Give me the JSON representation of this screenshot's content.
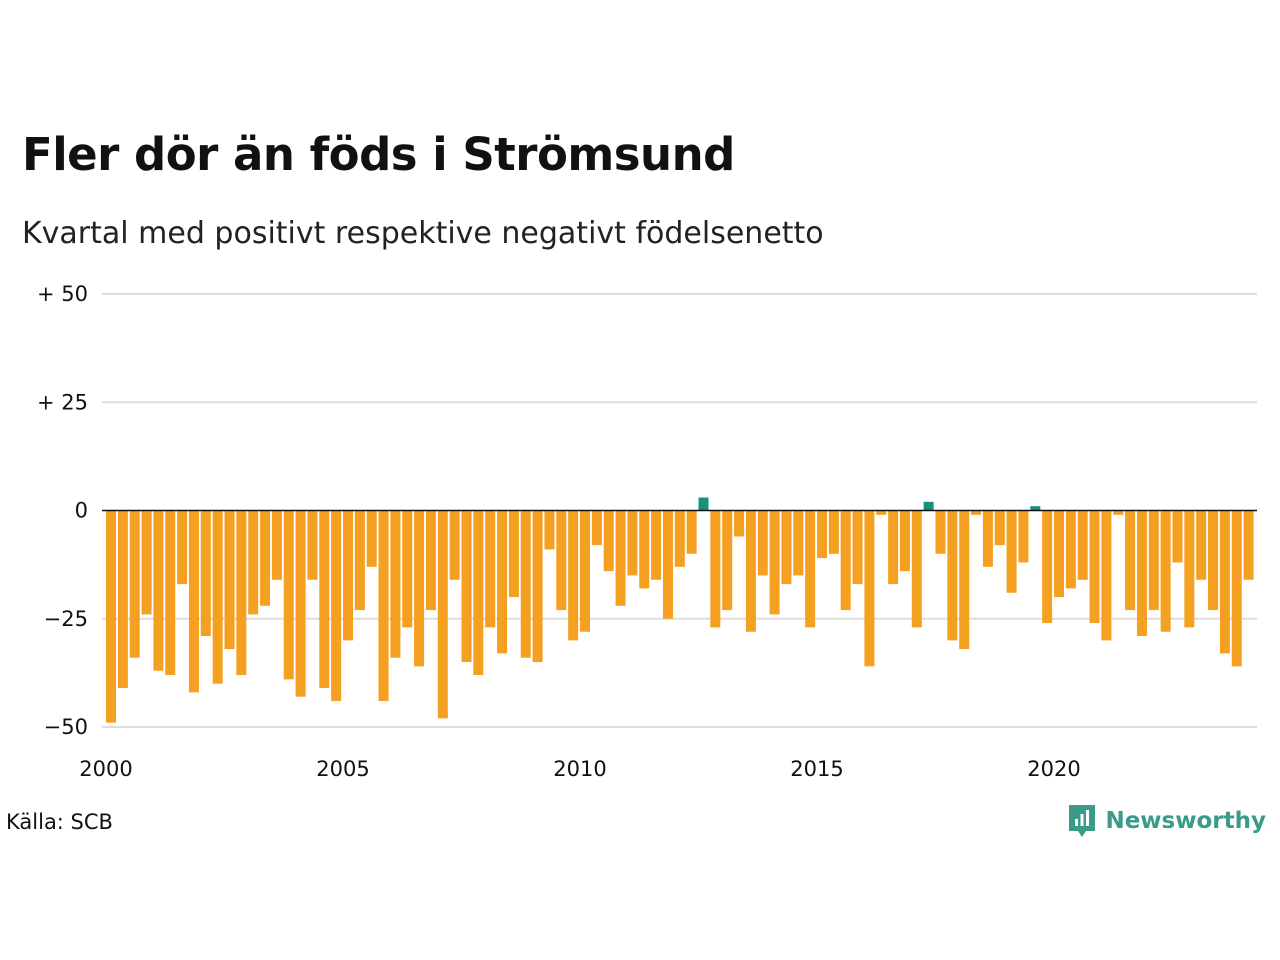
{
  "title": "Fler dör än föds i Strömsund",
  "subtitle": "Kvartal med positivt respektive negativt födelsenetto",
  "source": "Källa: SCB",
  "brand": {
    "name": "Newsworthy",
    "logo_icon": "newsworthy-logo-icon",
    "color": "#3a9b8a"
  },
  "colors": {
    "negative": "#f5a020",
    "positive": "#17917d",
    "grid": "#dddddd",
    "zero_line": "#111111"
  },
  "chart_data": {
    "type": "bar",
    "title": "Fler dör än föds i Strömsund",
    "subtitle": "Kvartal med positivt respektive negativt födelsenetto",
    "xlabel": "",
    "ylabel": "",
    "ylim": [
      -50,
      50
    ],
    "yticks": [
      {
        "value": 50,
        "label": "+ 50"
      },
      {
        "value": 25,
        "label": "+ 25"
      },
      {
        "value": 0,
        "label": "0"
      },
      {
        "value": -25,
        "label": "−25"
      },
      {
        "value": -50,
        "label": "−50"
      }
    ],
    "xticks": [
      "2000",
      "2005",
      "2010",
      "2015",
      "2020"
    ],
    "grid": true,
    "start_year": 2000,
    "periods_per_year": 4,
    "values": [
      -49,
      -41,
      -34,
      -24,
      -37,
      -38,
      -17,
      -42,
      -29,
      -40,
      -32,
      -38,
      -24,
      -22,
      -16,
      -39,
      -43,
      -16,
      -41,
      -44,
      -30,
      -23,
      -13,
      -44,
      -34,
      -27,
      -36,
      -23,
      -48,
      -16,
      -35,
      -38,
      -27,
      -33,
      -20,
      -34,
      -35,
      -9,
      -23,
      -30,
      -28,
      -8,
      -14,
      -22,
      -15,
      -18,
      -16,
      -25,
      -13,
      -10,
      3,
      -27,
      -23,
      -6,
      -28,
      -15,
      -24,
      -17,
      -15,
      -27,
      -11,
      -10,
      -23,
      -17,
      -36,
      -1,
      -17,
      -14,
      -27,
      2,
      -10,
      -30,
      -32,
      -1,
      -13,
      -8,
      -19,
      -12,
      1,
      -26,
      -20,
      -18,
      -16,
      -26,
      -30,
      -1,
      -23,
      -29,
      -23,
      -28,
      -12,
      -27,
      -16,
      -23,
      -33,
      -36,
      -16
    ]
  }
}
